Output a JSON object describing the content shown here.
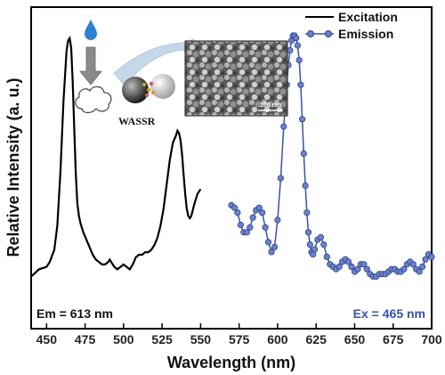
{
  "chart_data": {
    "type": "line",
    "xlabel": "Wavelength (nm)",
    "ylabel": "Relative Intensity (a. u.)",
    "xlim": [
      440,
      700
    ],
    "x_ticks": [
      450,
      475,
      500,
      525,
      550,
      575,
      600,
      625,
      650,
      675,
      700
    ],
    "legend_position": "top-right",
    "series": [
      {
        "name": "Excitation",
        "style": "line",
        "color": "#000000",
        "x": [
          440,
          445,
          450,
          452,
          455,
          457,
          459,
          461,
          463,
          464,
          465,
          466,
          467,
          468,
          469,
          470,
          471,
          472,
          474,
          476,
          478,
          480,
          482,
          484,
          486,
          488,
          490,
          491,
          492,
          493,
          494,
          496,
          498,
          500,
          502,
          504,
          506,
          508,
          510,
          512,
          514,
          516,
          518,
          520,
          522,
          524,
          526,
          528,
          530,
          532,
          534,
          535,
          536,
          537,
          538,
          539,
          540,
          541,
          542,
          543,
          544,
          546,
          548,
          550
        ],
        "y": [
          0.02,
          0.05,
          0.06,
          0.08,
          0.13,
          0.23,
          0.45,
          0.74,
          0.95,
          0.99,
          1.0,
          0.96,
          0.82,
          0.62,
          0.44,
          0.32,
          0.27,
          0.24,
          0.2,
          0.17,
          0.14,
          0.11,
          0.09,
          0.08,
          0.07,
          0.07,
          0.08,
          0.09,
          0.08,
          0.07,
          0.06,
          0.05,
          0.06,
          0.07,
          0.06,
          0.05,
          0.07,
          0.1,
          0.11,
          0.11,
          0.12,
          0.12,
          0.13,
          0.15,
          0.18,
          0.23,
          0.3,
          0.4,
          0.5,
          0.57,
          0.6,
          0.62,
          0.61,
          0.58,
          0.52,
          0.44,
          0.36,
          0.3,
          0.27,
          0.26,
          0.27,
          0.32,
          0.36,
          0.38
        ]
      },
      {
        "name": "Emission",
        "style": "line-marker",
        "color": "#3a52a8",
        "x": [
          570,
          572,
          574,
          576,
          578,
          580,
          582,
          584,
          586,
          588,
          590,
          592,
          594,
          596,
          598,
          600,
          602,
          604,
          606,
          607,
          608,
          609,
          610,
          611,
          612,
          613,
          614,
          615,
          616,
          617,
          618,
          619,
          620,
          621,
          622,
          623,
          624,
          626,
          628,
          630,
          632,
          634,
          636,
          638,
          640,
          642,
          644,
          646,
          648,
          650,
          652,
          654,
          656,
          658,
          660,
          662,
          664,
          666,
          668,
          670,
          672,
          674,
          676,
          678,
          680,
          682,
          684,
          686,
          688,
          690,
          692,
          694,
          696,
          698,
          700
        ],
        "y": [
          0.31,
          0.3,
          0.28,
          0.23,
          0.2,
          0.2,
          0.22,
          0.26,
          0.29,
          0.3,
          0.28,
          0.22,
          0.16,
          0.12,
          0.14,
          0.25,
          0.42,
          0.63,
          0.8,
          0.88,
          0.94,
          0.98,
          1.0,
          1.0,
          0.99,
          0.96,
          0.9,
          0.8,
          0.66,
          0.52,
          0.39,
          0.28,
          0.2,
          0.15,
          0.12,
          0.11,
          0.13,
          0.17,
          0.18,
          0.15,
          0.1,
          0.07,
          0.06,
          0.05,
          0.06,
          0.08,
          0.09,
          0.08,
          0.06,
          0.04,
          0.05,
          0.07,
          0.07,
          0.05,
          0.03,
          0.02,
          0.02,
          0.03,
          0.03,
          0.03,
          0.04,
          0.05,
          0.05,
          0.04,
          0.04,
          0.05,
          0.07,
          0.08,
          0.07,
          0.05,
          0.04,
          0.06,
          0.09,
          0.11,
          0.1
        ]
      }
    ],
    "annotations": {
      "em_label": "Em = 613 nm",
      "ex_label": "Ex = 465 nm",
      "inset_label": "WASSR",
      "scale_bar": "100 nm"
    },
    "grid": false
  },
  "colors": {
    "excitation": "#000000",
    "emission": "#3a52a8",
    "water_drop": "#2f7fd6",
    "arrow_gray": "#8a8a8a"
  }
}
